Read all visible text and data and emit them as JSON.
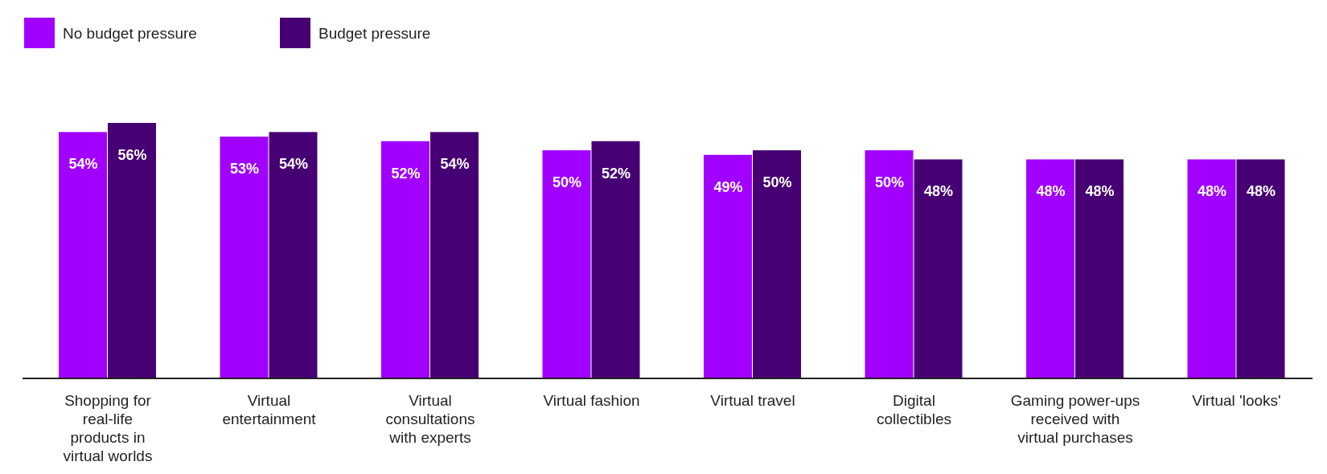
{
  "chart_data": {
    "type": "bar",
    "categories": [
      "Shopping for real-life products in virtual worlds",
      "Virtual entertainment",
      "Virtual consultations with experts",
      "Virtual fashion",
      "Virtual travel",
      "Digital collectibles",
      "Gaming power-ups received with virtual purchases",
      "Virtual 'looks'"
    ],
    "series": [
      {
        "name": "No budget pressure",
        "color": "#a100ff",
        "values": [
          54,
          53,
          52,
          50,
          49,
          50,
          48,
          48
        ],
        "value_labels": [
          "54%",
          "53%",
          "52%",
          "50%",
          "49%",
          "50%",
          "48%",
          "48%"
        ]
      },
      {
        "name": "Budget pressure",
        "color": "#460073",
        "values": [
          56,
          54,
          54,
          52,
          50,
          48,
          48,
          48
        ],
        "value_labels": [
          "56%",
          "54%",
          "54%",
          "52%",
          "50%",
          "48%",
          "48%",
          "48%"
        ]
      }
    ],
    "legend": "top left"
  }
}
